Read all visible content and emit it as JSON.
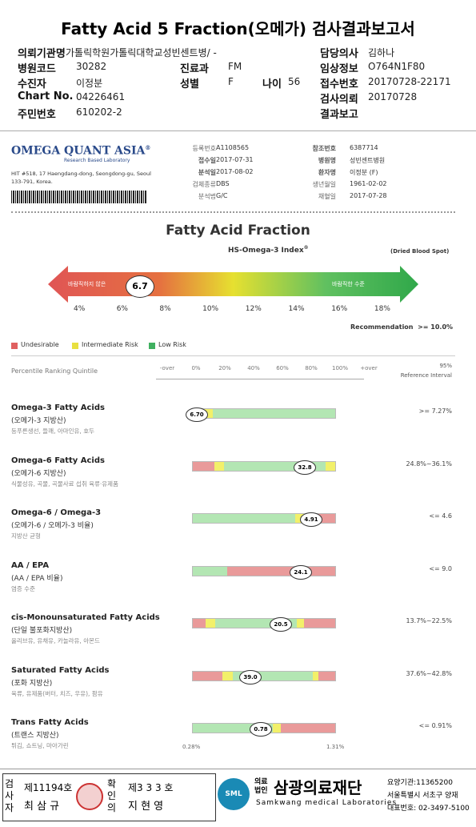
{
  "header": {
    "title": "Fatty Acid 5 Fraction(오메가) 검사결과보고서",
    "fields": [
      {
        "label": "의뢰기관명",
        "value": "가톨릭학원가톨릭대학교성빈센트병/ -"
      },
      {
        "label": "담당의사",
        "value": "김하나"
      },
      {
        "label": "병원코드",
        "value": "30282"
      },
      {
        "label": "진료과",
        "value": "FM"
      },
      {
        "label": "임상정보",
        "value": "O764N1F80"
      },
      {
        "label": "수진자",
        "value": "이정분"
      },
      {
        "label": "성별",
        "value": "F"
      },
      {
        "label": "나이",
        "value": "56"
      },
      {
        "label": "접수번호",
        "value": "20170728-22171"
      },
      {
        "label": "Chart No.",
        "value": "04226461"
      },
      {
        "label": "검사의뢰",
        "value": "20170728"
      },
      {
        "label": "주민번호",
        "value": "610202-2"
      },
      {
        "label": "결과보고",
        "value": ""
      }
    ]
  },
  "lab": {
    "name": "OMEGA QUANT ASIA",
    "mark": "®",
    "subtitle": "Research Based Laboratory",
    "address": "HIT #518, 17 Haengdang-dong, Seongdong-gu, Seoul 133-791, Korea.",
    "left_fields": [
      {
        "label": "등록번호",
        "value": "A1108565"
      },
      {
        "label": "접수일",
        "value": "2017-07-31"
      },
      {
        "label": "분석일",
        "value": "2017-08-02"
      },
      {
        "label": "검체종류",
        "value": "DBS"
      },
      {
        "label": "분석법",
        "value": "G/C"
      }
    ],
    "right_fields": [
      {
        "label": "참조번호",
        "value": "6387714"
      },
      {
        "label": "병원명",
        "value": "성빈센트병원"
      },
      {
        "label": "환자명",
        "value": "이정분 (F)"
      },
      {
        "label": "생년월일",
        "value": "1961-02-02"
      },
      {
        "label": "채혈일",
        "value": "2017-07-28"
      }
    ]
  },
  "index": {
    "title": "Fatty Acid Fraction",
    "subtitle": "HS-Omega-3 Index",
    "subtitle_mark": "®",
    "sample": "(Dried Blood Spot)",
    "bad_label": "바람직하지 않은",
    "good_label": "바람직한 수준",
    "value": "6.7",
    "ticks": [
      "4%",
      "6%",
      "8%",
      "10%",
      "12%",
      "14%",
      "16%",
      "18%"
    ],
    "recommendation_label": "Recommendation",
    "recommendation": ">= 10.0%"
  },
  "legend": [
    "Undesirable",
    "Intermediate Risk",
    "Low Risk"
  ],
  "scale": {
    "label": "Percentile Ranking Quintile",
    "ticks": [
      "-over",
      "0%",
      "20%",
      "40%",
      "60%",
      "80%",
      "100%",
      "+over"
    ],
    "reference_top": "95%",
    "reference_bottom": "Reference Interval"
  },
  "rows": [
    {
      "name": "Omega-3 Fatty Acids",
      "korean": "(오메가-3 지방산)",
      "foods": "등푸른생선, 들깨, 아마인유, 호두",
      "value": "6.70",
      "reference": ">= 7.27%"
    },
    {
      "name": "Omega-6 Fatty Acids",
      "korean": "(오메가-6 지방산)",
      "foods": "식물성유, 곡물, 곡물사료 섭취 육류·유제품",
      "value": "32.8",
      "reference": "24.8%~36.1%"
    },
    {
      "name": "Omega-6 / Omega-3",
      "korean": "(오메가-6 / 오메가-3 비율)",
      "foods": "지방산 균형",
      "value": "4.91",
      "reference": "<= 4.6"
    },
    {
      "name": "AA / EPA",
      "korean": "(AA / EPA 비율)",
      "foods": "염증 수준",
      "value": "24.1",
      "reference": "<= 9.0"
    },
    {
      "name": "cis-Monounsaturated Fatty Acids",
      "korean": "(단일 불포화지방산)",
      "foods": "올리브유, 유채유, 카놀라유, 아몬드",
      "value": "20.5",
      "reference": "13.7%~22.5%"
    },
    {
      "name": "Saturated Fatty Acids",
      "korean": "(포화 지방산)",
      "foods": "육류, 유제품(버터, 치즈, 우유), 팜유",
      "value": "39.0",
      "reference": "37.6%~42.8%"
    },
    {
      "name": "Trans Fatty Acids",
      "korean": "(트랜스 지방산)",
      "foods": "튀김, 쇼트닝, 마아가린",
      "value": "0.78",
      "reference": "<= 0.91%"
    }
  ],
  "trans_range": [
    "0.28%",
    "1.31%"
  ],
  "footer": {
    "tester_label": "검사자",
    "tester_no": "제11194호",
    "tester_name": "최 삼 규",
    "confirm_label": "확인의",
    "confirm_no": "제3 3 3 호",
    "confirm_name": "지 현 영",
    "org_prefix": "의료법인",
    "org": "삼광의료재단",
    "org_en": "Samkwang medical Laboratories",
    "logo": "SML",
    "info": [
      "요양기관:11365200",
      "서울특별시 서초구 양재",
      "대표번호: 02-3497-5100"
    ]
  }
}
